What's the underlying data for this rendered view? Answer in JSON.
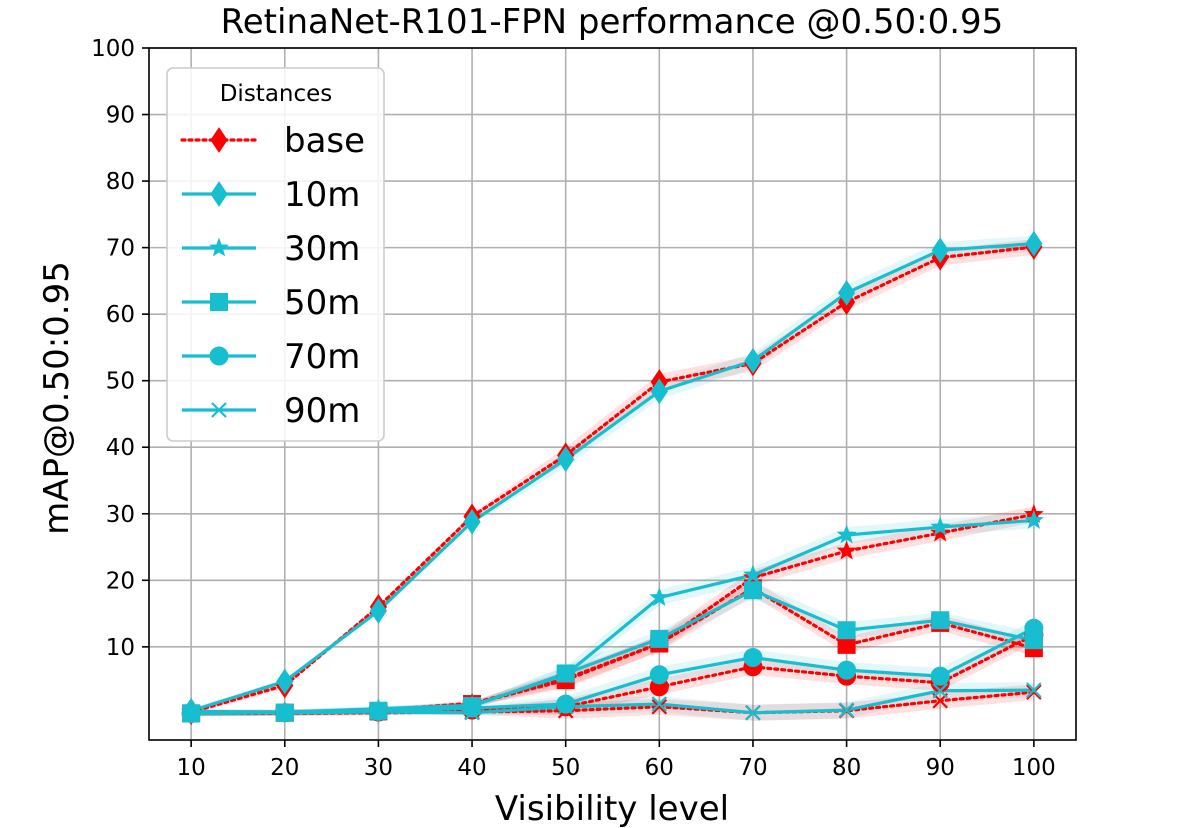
{
  "chart_data": {
    "type": "line",
    "title": "RetinaNet-R101-FPN performance @0.50:0.95",
    "xlabel": "Visibility level",
    "ylabel": "mAP@0.50:0.95",
    "x": [
      10,
      20,
      30,
      40,
      50,
      60,
      70,
      80,
      90,
      100
    ],
    "xticks": [
      10,
      20,
      30,
      40,
      50,
      60,
      70,
      80,
      90,
      100
    ],
    "yticks": [
      10,
      20,
      30,
      40,
      50,
      60,
      70,
      80,
      90,
      100
    ],
    "xlim": [
      5.5,
      104.5
    ],
    "ylim": [
      -4,
      100
    ],
    "grid": true,
    "legend": {
      "title": "Distances",
      "placement": "upper-left"
    },
    "colors": {
      "base": "#ff0000",
      "distance": "#17becf"
    },
    "series": [
      {
        "name": "base",
        "group": "base",
        "marker": "diamond",
        "values": [
          0.2,
          4.2,
          16.0,
          29.6,
          38.8,
          49.8,
          52.6,
          61.8,
          68.5,
          70.1
        ]
      },
      {
        "name": "",
        "group": "base",
        "marker": "star",
        "values": [
          0.1,
          0.2,
          0.5,
          1.5,
          5.2,
          10.5,
          20.4,
          24.4,
          27.1,
          29.9
        ]
      },
      {
        "name": "",
        "group": "base",
        "marker": "square",
        "values": [
          0.0,
          0.1,
          0.3,
          1.4,
          5.0,
          10.5,
          18.8,
          10.3,
          13.6,
          9.8
        ]
      },
      {
        "name": "",
        "group": "base",
        "marker": "circle",
        "values": [
          0.0,
          0.1,
          0.2,
          0.5,
          1.0,
          4.0,
          7.0,
          5.6,
          4.6,
          11.8
        ]
      },
      {
        "name": "",
        "group": "base",
        "marker": "x",
        "values": [
          0.0,
          0.0,
          0.1,
          0.2,
          0.4,
          1.0,
          0.1,
          0.4,
          1.9,
          3.2
        ]
      },
      {
        "name": "10m",
        "group": "distance",
        "marker": "diamond",
        "values": [
          0.4,
          4.8,
          15.4,
          28.8,
          38.2,
          48.4,
          53.0,
          63.2,
          69.6,
          70.6
        ]
      },
      {
        "name": "30m",
        "group": "distance",
        "marker": "star",
        "values": [
          0.3,
          0.2,
          0.7,
          1.2,
          5.8,
          17.4,
          20.8,
          26.8,
          28.0,
          29.0
        ]
      },
      {
        "name": "50m",
        "group": "distance",
        "marker": "square",
        "values": [
          0.0,
          0.1,
          0.4,
          1.1,
          6.0,
          11.2,
          18.5,
          12.5,
          14.0,
          11.0
        ]
      },
      {
        "name": "70m",
        "group": "distance",
        "marker": "circle",
        "values": [
          0.0,
          0.1,
          0.3,
          0.8,
          1.4,
          5.8,
          8.4,
          6.5,
          5.6,
          12.8
        ]
      },
      {
        "name": "90m",
        "group": "distance",
        "marker": "x",
        "values": [
          0.0,
          0.1,
          0.2,
          0.1,
          1.0,
          1.4,
          0.1,
          0.5,
          3.4,
          3.5
        ]
      }
    ]
  }
}
